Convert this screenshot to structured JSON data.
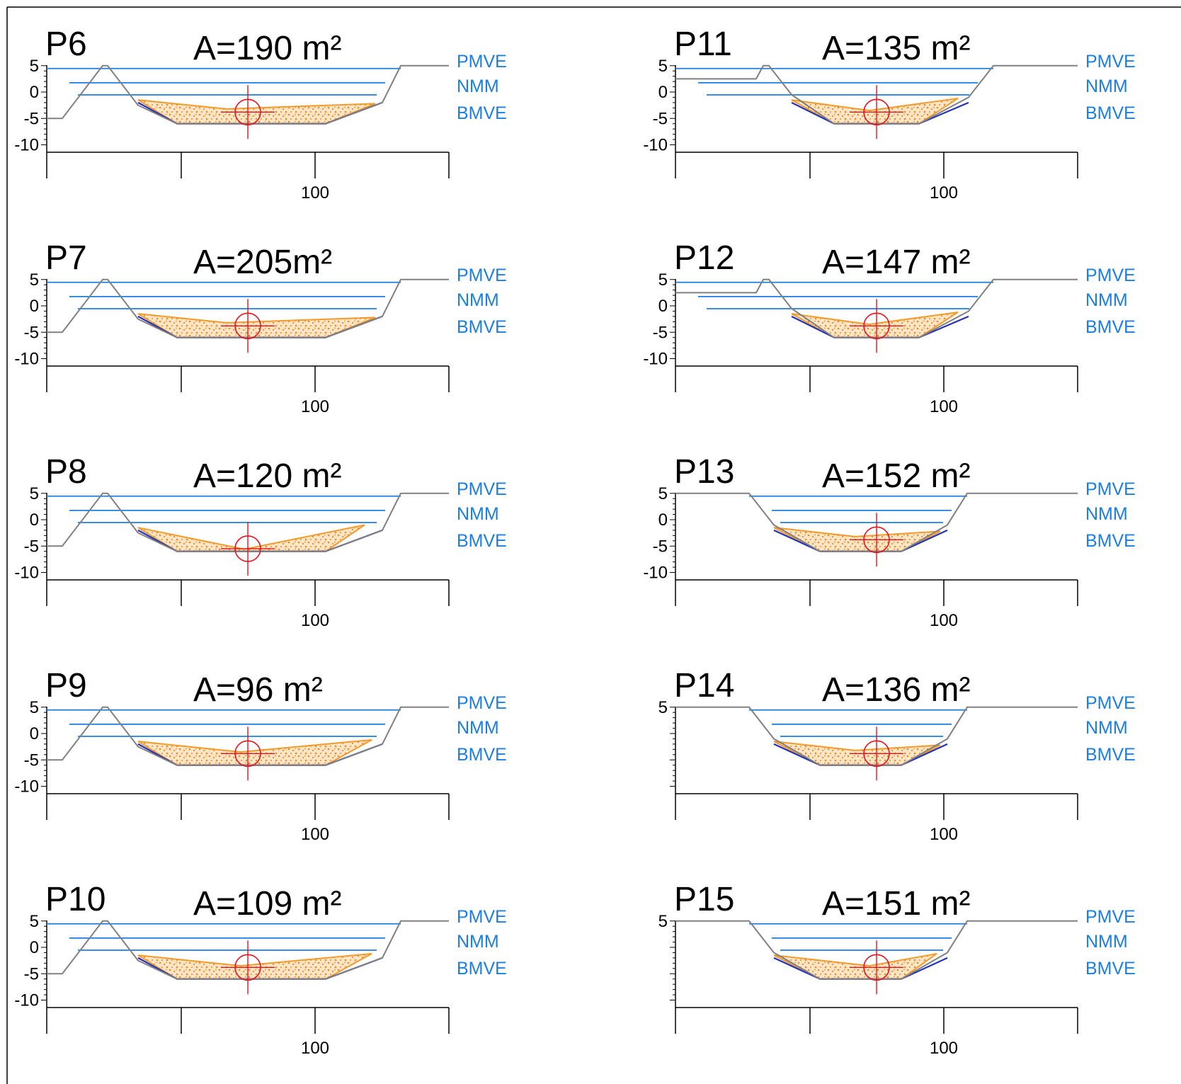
{
  "colors": {
    "water_level": "#1a7fe0",
    "terrain": "#808080",
    "bed": "#2233bb",
    "sediment": "#f39b2c",
    "centroid": "#e8141c"
  },
  "legend": [
    "PMVE",
    "NMM",
    "BMVE"
  ],
  "y_tick_labels": [
    "5",
    "0",
    "-5",
    "-10"
  ],
  "x_tick_label": "100",
  "sections": [
    {
      "id": "P6",
      "area": "A=190 m²",
      "y_ticks": [
        "5",
        "0",
        "-5",
        "-10"
      ],
      "shape": "dike-left",
      "sediment": "full"
    },
    {
      "id": "P7",
      "area": "A=205m²",
      "y_ticks": [
        "5",
        "0",
        "-5",
        "-10"
      ],
      "shape": "dike-left",
      "sediment": "full"
    },
    {
      "id": "P8",
      "area": "A=120 m²",
      "y_ticks": [
        "5",
        "0",
        "-5",
        "-10"
      ],
      "shape": "dike-left",
      "sediment": "v"
    },
    {
      "id": "P9",
      "area": "A=96 m²",
      "y_ticks": [
        "5",
        "0",
        "-5",
        "-10"
      ],
      "shape": "dike-left",
      "sediment": "partial"
    },
    {
      "id": "P10",
      "area": "A=109 m²",
      "y_ticks": [
        "5",
        "0",
        "-5",
        "-10"
      ],
      "shape": "dike-left",
      "sediment": "partial"
    },
    {
      "id": "P11",
      "area": "A=135 m²",
      "y_ticks": [
        "5",
        "0",
        "-5",
        "-10"
      ],
      "shape": "dike-small",
      "sediment": "partial"
    },
    {
      "id": "P12",
      "area": "A=147 m²",
      "y_ticks": [
        "5",
        "0",
        "-5",
        "-10"
      ],
      "shape": "dike-small",
      "sediment": "partial"
    },
    {
      "id": "P13",
      "area": "A=152 m²",
      "y_ticks": [
        "5",
        "0",
        "-5",
        "-10"
      ],
      "shape": "flat",
      "sediment": "full"
    },
    {
      "id": "P14",
      "area": "A=136 m²",
      "y_ticks": [
        "5"
      ],
      "shape": "flat",
      "sediment": "full"
    },
    {
      "id": "P15",
      "area": "A=151 m²",
      "y_ticks": [
        "5"
      ],
      "shape": "flat",
      "sediment": "partial"
    }
  ]
}
